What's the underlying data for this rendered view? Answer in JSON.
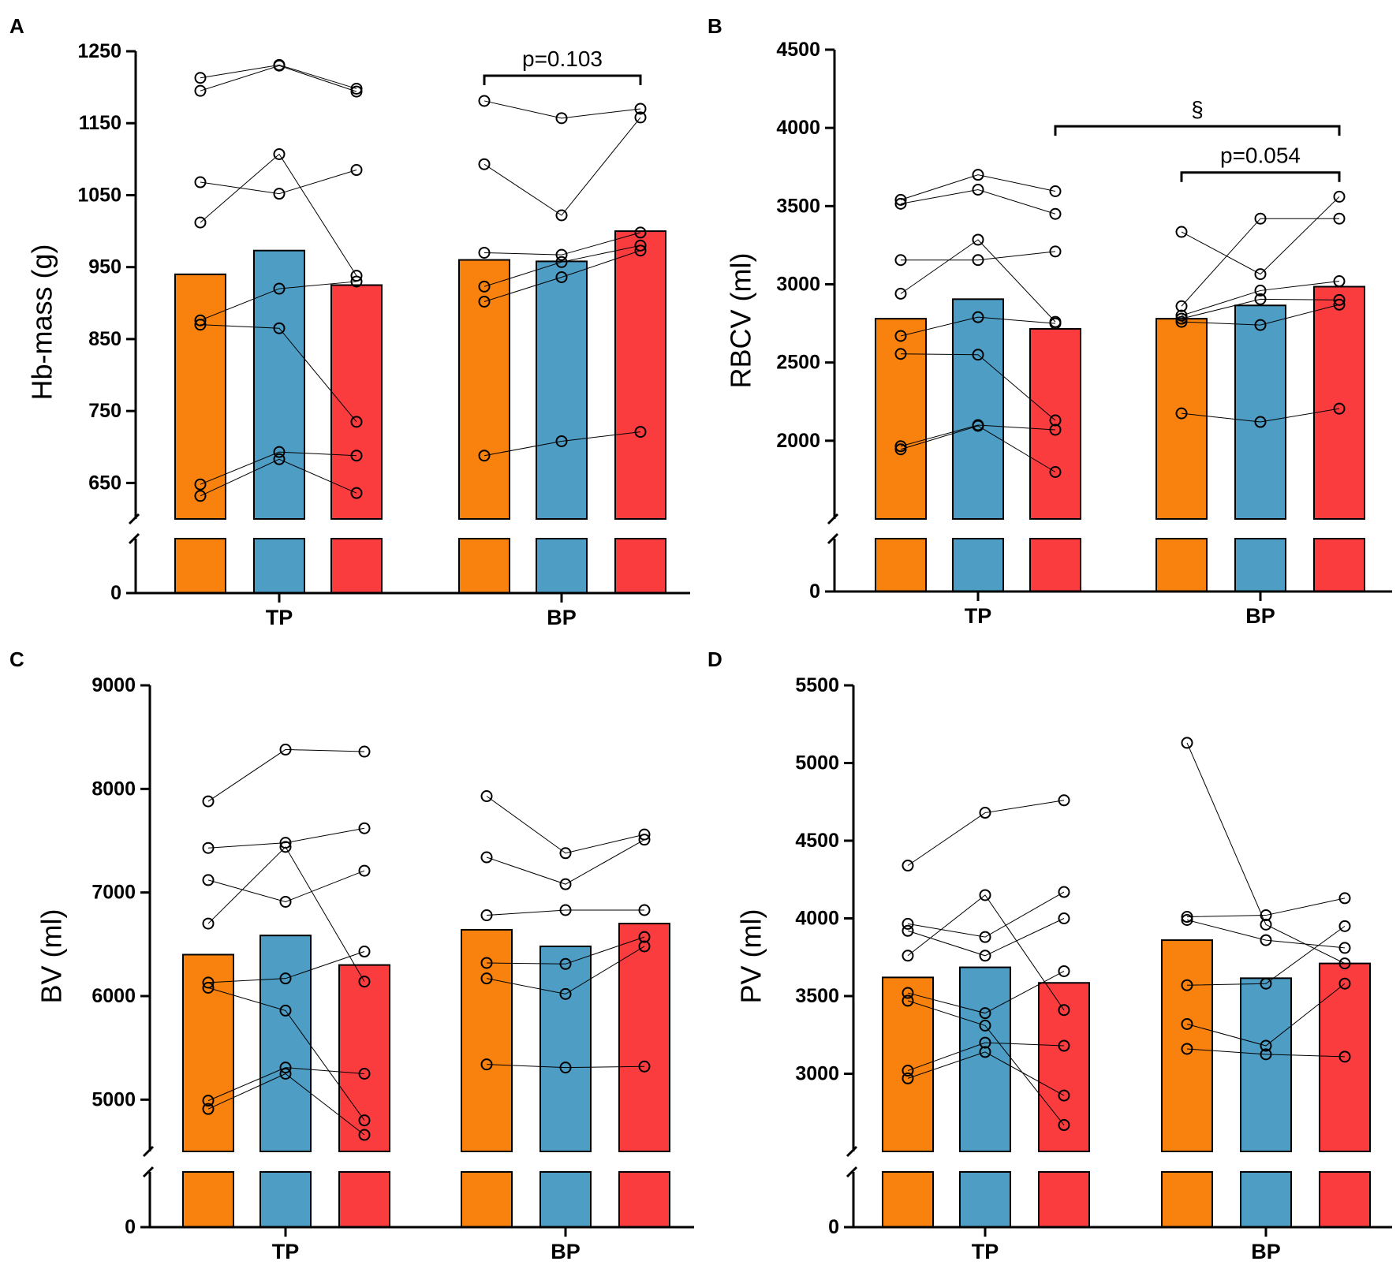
{
  "figure": {
    "background": "#ffffff"
  },
  "colors": {
    "pre": "#F9820F",
    "mid": "#4D9DC5",
    "post": "#FB3C3F",
    "axis": "#000000"
  },
  "chart_data": [
    {
      "type": "bar",
      "panel": "A",
      "ylabel": "Hb-mass (g)",
      "ylim": [
        600,
        1250
      ],
      "yticks": [
        650,
        750,
        850,
        950,
        1050,
        1150,
        1250
      ],
      "zero_tick": "0",
      "categories": [
        "TP",
        "BP"
      ],
      "series": [
        {
          "name": "bar-1",
          "color_key": "pre",
          "values": [
            940,
            960
          ]
        },
        {
          "name": "bar-2",
          "color_key": "mid",
          "values": [
            973,
            958
          ]
        },
        {
          "name": "bar-3",
          "color_key": "post",
          "values": [
            925,
            1000
          ]
        }
      ],
      "individuals": {
        "TP": [
          [
            1213,
            1231,
            1198
          ],
          [
            1195,
            1230,
            1194
          ],
          [
            1068,
            1052,
            1085
          ],
          [
            1012,
            1107,
            938
          ],
          [
            876,
            920,
            930
          ],
          [
            870,
            865,
            735
          ],
          [
            648,
            693,
            688
          ],
          [
            632,
            683,
            636
          ]
        ],
        "BP": [
          [
            1181,
            1157,
            1170
          ],
          [
            1093,
            1022,
            1158
          ],
          [
            970,
            967,
            998
          ],
          [
            923,
            957,
            980
          ],
          [
            902,
            936,
            973
          ],
          [
            688,
            708,
            721
          ]
        ]
      },
      "annotations": [
        {
          "text": "p=0.103",
          "from": [
            "BP",
            0
          ],
          "to": [
            "BP",
            2
          ],
          "y": 1216
        }
      ]
    },
    {
      "type": "bar",
      "panel": "B",
      "ylabel": "RBCV (ml)",
      "ylim": [
        1500,
        4500
      ],
      "yticks": [
        2000,
        2500,
        3000,
        3500,
        4000,
        4500
      ],
      "zero_tick": "0",
      "categories": [
        "TP",
        "BP"
      ],
      "series": [
        {
          "name": "bar-1",
          "color_key": "pre",
          "values": [
            2780,
            2780
          ]
        },
        {
          "name": "bar-2",
          "color_key": "mid",
          "values": [
            2905,
            2865
          ]
        },
        {
          "name": "bar-3",
          "color_key": "post",
          "values": [
            2715,
            2985
          ]
        }
      ],
      "individuals": {
        "TP": [
          [
            3540,
            3700,
            3595
          ],
          [
            3515,
            3605,
            3450
          ],
          [
            3155,
            3155,
            3210
          ],
          [
            2940,
            3285,
            2760
          ],
          [
            2670,
            2790,
            2750
          ],
          [
            2555,
            2550,
            2130
          ],
          [
            1965,
            2100,
            2070
          ],
          [
            1945,
            2095,
            1800
          ]
        ],
        "BP": [
          [
            3335,
            3065,
            3560
          ],
          [
            2860,
            3420,
            3420
          ],
          [
            2800,
            2960,
            3020
          ],
          [
            2780,
            2905,
            2900
          ],
          [
            2760,
            2740,
            2870
          ],
          [
            2175,
            2120,
            2205
          ]
        ]
      },
      "annotations": [
        {
          "text": "§",
          "from": [
            "TP",
            2
          ],
          "to": [
            "BP",
            2
          ],
          "y": 4010
        },
        {
          "text": "p=0.054",
          "from": [
            "BP",
            0
          ],
          "to": [
            "BP",
            2
          ],
          "y": 3715
        }
      ]
    },
    {
      "type": "bar",
      "panel": "C",
      "ylabel": "BV (ml)",
      "ylim": [
        4500,
        9000
      ],
      "yticks": [
        5000,
        6000,
        7000,
        8000,
        9000
      ],
      "zero_tick": "0",
      "categories": [
        "TP",
        "BP"
      ],
      "series": [
        {
          "name": "bar-1",
          "color_key": "pre",
          "values": [
            6400,
            6640
          ]
        },
        {
          "name": "bar-2",
          "color_key": "mid",
          "values": [
            6585,
            6480
          ]
        },
        {
          "name": "bar-3",
          "color_key": "post",
          "values": [
            6300,
            6700
          ]
        }
      ],
      "individuals": {
        "TP": [
          [
            7880,
            8380,
            8360
          ],
          [
            7430,
            7480,
            7620
          ],
          [
            7120,
            6910,
            7210
          ],
          [
            6700,
            7440,
            6140
          ],
          [
            6130,
            6170,
            6430
          ],
          [
            6080,
            5860,
            4800
          ],
          [
            4990,
            5310,
            5250
          ],
          [
            4910,
            5250,
            4660
          ]
        ],
        "BP": [
          [
            7930,
            7380,
            7560
          ],
          [
            7340,
            7080,
            7510
          ],
          [
            6780,
            6830,
            6830
          ],
          [
            6320,
            6310,
            6570
          ],
          [
            6170,
            6020,
            6480
          ],
          [
            5340,
            5310,
            5320
          ]
        ]
      },
      "annotations": []
    },
    {
      "type": "bar",
      "panel": "D",
      "ylabel": "PV (ml)",
      "ylim": [
        2500,
        5500
      ],
      "yticks": [
        3000,
        3500,
        4000,
        4500,
        5000,
        5500
      ],
      "zero_tick": "0",
      "categories": [
        "TP",
        "BP"
      ],
      "series": [
        {
          "name": "bar-1",
          "color_key": "pre",
          "values": [
            3620,
            3860
          ]
        },
        {
          "name": "bar-2",
          "color_key": "mid",
          "values": [
            3685,
            3615
          ]
        },
        {
          "name": "bar-3",
          "color_key": "post",
          "values": [
            3585,
            3710
          ]
        }
      ],
      "individuals": {
        "TP": [
          [
            4340,
            4680,
            4760
          ],
          [
            3965,
            3880,
            4170
          ],
          [
            3920,
            3760,
            4000
          ],
          [
            3760,
            4150,
            3410
          ],
          [
            3520,
            3390,
            3660
          ],
          [
            3470,
            3310,
            2670
          ],
          [
            3020,
            3200,
            3180
          ],
          [
            2970,
            3140,
            2860
          ]
        ],
        "BP": [
          [
            5130,
            3960,
            3710
          ],
          [
            4010,
            4020,
            4130
          ],
          [
            3990,
            3860,
            3810
          ],
          [
            3570,
            3580,
            3950
          ],
          [
            3320,
            3180,
            3580
          ],
          [
            3160,
            3125,
            3110
          ]
        ]
      },
      "annotations": []
    }
  ]
}
